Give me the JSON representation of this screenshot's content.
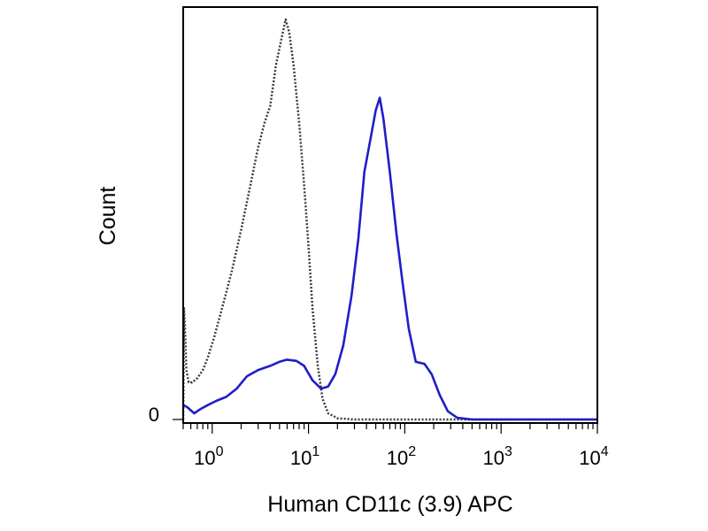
{
  "chart_data": {
    "type": "line",
    "title": "",
    "xlabel": "Human CD11c (3.9) APC",
    "ylabel": "Count",
    "x_scale": "log",
    "xlim": [
      0.5,
      10000
    ],
    "x_ticks": [
      {
        "base": "10",
        "exp": "0",
        "value": 1
      },
      {
        "base": "10",
        "exp": "1",
        "value": 10
      },
      {
        "base": "10",
        "exp": "2",
        "value": 100
      },
      {
        "base": "10",
        "exp": "3",
        "value": 1000
      },
      {
        "base": "10",
        "exp": "4",
        "value": 10000
      }
    ],
    "y_tick_label": "0",
    "ylim": [
      0,
      100
    ],
    "grid": false,
    "series": [
      {
        "line_style": "dotted",
        "color": "#3a3a3a",
        "points": [
          [
            0.5,
            0
          ],
          [
            0.51,
            27
          ],
          [
            0.52,
            23
          ],
          [
            0.54,
            12
          ],
          [
            0.57,
            9
          ],
          [
            0.62,
            9
          ],
          [
            0.7,
            10
          ],
          [
            0.8,
            12
          ],
          [
            0.9,
            15
          ],
          [
            1.05,
            20
          ],
          [
            1.3,
            28
          ],
          [
            1.6,
            36
          ],
          [
            2.0,
            46
          ],
          [
            2.5,
            57
          ],
          [
            3.0,
            66
          ],
          [
            3.5,
            72
          ],
          [
            4.0,
            76
          ],
          [
            4.6,
            86
          ],
          [
            5.2,
            92
          ],
          [
            5.8,
            97
          ],
          [
            6.3,
            94
          ],
          [
            7.0,
            86
          ],
          [
            8.0,
            72
          ],
          [
            9.0,
            57
          ],
          [
            10.0,
            42
          ],
          [
            11.0,
            27
          ],
          [
            12.5,
            13
          ],
          [
            14.0,
            5
          ],
          [
            16.0,
            1.5
          ],
          [
            20.0,
            0.3
          ],
          [
            30.0,
            0
          ],
          [
            10000,
            0
          ]
        ]
      },
      {
        "line_style": "solid",
        "color": "#1e1ec8",
        "points": [
          [
            0.5,
            3.5
          ],
          [
            0.55,
            3
          ],
          [
            0.65,
            1.5
          ],
          [
            0.75,
            2.5
          ],
          [
            0.9,
            3.5
          ],
          [
            1.1,
            4.5
          ],
          [
            1.4,
            5.5
          ],
          [
            1.8,
            7.5
          ],
          [
            2.3,
            10.5
          ],
          [
            3.0,
            12
          ],
          [
            4.0,
            13
          ],
          [
            5.0,
            14
          ],
          [
            6.0,
            14.5
          ],
          [
            7.5,
            14.2
          ],
          [
            9.0,
            13
          ],
          [
            11.0,
            9.5
          ],
          [
            13.5,
            7.5
          ],
          [
            16.0,
            8.0
          ],
          [
            19.0,
            11
          ],
          [
            23.0,
            18
          ],
          [
            28.0,
            30
          ],
          [
            33.0,
            44
          ],
          [
            38.0,
            60
          ],
          [
            44.0,
            68
          ],
          [
            50.0,
            75
          ],
          [
            55.0,
            78
          ],
          [
            60.0,
            73
          ],
          [
            70.0,
            60
          ],
          [
            82.0,
            45
          ],
          [
            95.0,
            33
          ],
          [
            110.0,
            22
          ],
          [
            130.0,
            14
          ],
          [
            160.0,
            13.5
          ],
          [
            190.0,
            11
          ],
          [
            230.0,
            6
          ],
          [
            280.0,
            2
          ],
          [
            350.0,
            0.4
          ],
          [
            500.0,
            0
          ],
          [
            10000,
            0
          ]
        ]
      }
    ]
  }
}
